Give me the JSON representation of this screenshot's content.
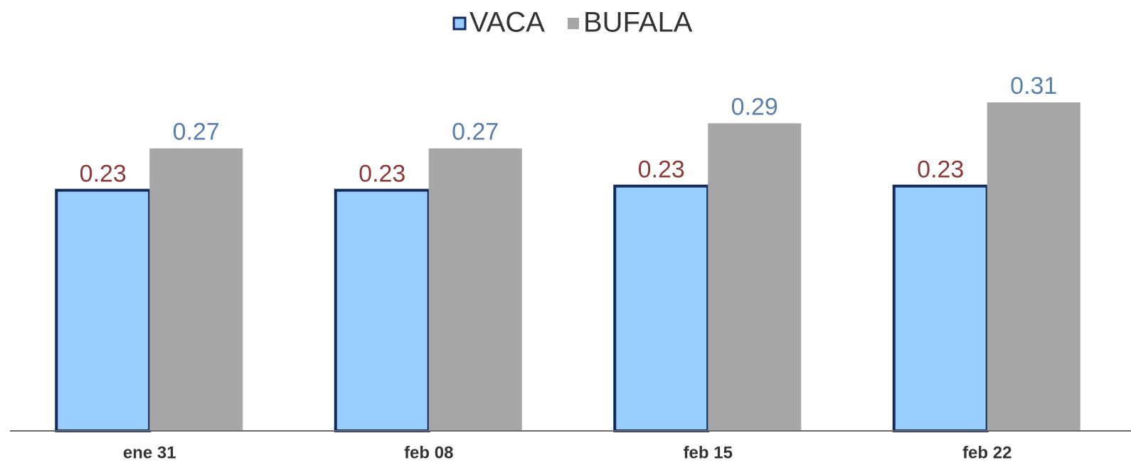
{
  "chart_data": {
    "type": "bar",
    "categories": [
      "ene 31",
      "feb 08",
      "feb 15",
      "feb 22"
    ],
    "series": [
      {
        "name": "VACA",
        "color": "#99ccff",
        "edgecolor": "#14285a",
        "label_color": "#8b3a3a",
        "values": [
          0.23,
          0.23,
          0.234,
          0.234
        ],
        "value_labels": [
          "0.23",
          "0.23",
          "0.23",
          "0.23"
        ]
      },
      {
        "name": "BUFALA",
        "color": "#a6a6a6",
        "label_color": "#5b7fa6",
        "values": [
          0.27,
          0.27,
          0.294,
          0.314
        ],
        "value_labels": [
          "0.27",
          "0.27",
          "0.29",
          "0.31"
        ]
      }
    ],
    "ylim": [
      0,
      0.35
    ],
    "legend": "top"
  }
}
